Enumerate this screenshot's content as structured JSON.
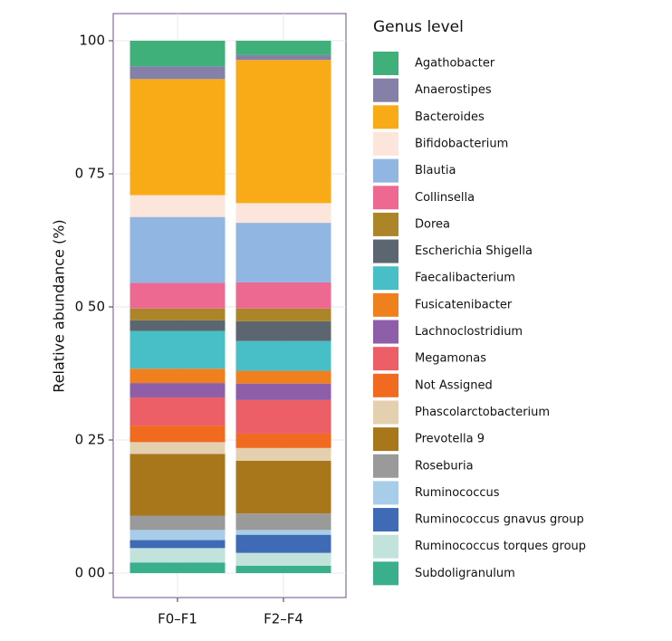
{
  "chart_data": {
    "type": "stacked_bar",
    "ylabel": "Relative abundance (%)",
    "legend_title": "Genus level",
    "categories": [
      "F0–F1",
      "F2–F4"
    ],
    "ylim": [
      0,
      100
    ],
    "yticks": [
      {
        "value": 0,
        "label": "0 00"
      },
      {
        "value": 25,
        "label": "0 25"
      },
      {
        "value": 50,
        "label": "0 50"
      },
      {
        "value": 75,
        "label": "0 75"
      },
      100
    ],
    "grid": true,
    "legend": "right",
    "series": [
      {
        "name": "Agathobacter",
        "color": "#3fb07a",
        "values": [
          4.8,
          2.7
        ]
      },
      {
        "name": "Anaerostipes",
        "color": "#8480a8",
        "values": [
          2.4,
          0.9
        ]
      },
      {
        "name": "Bacteroides",
        "color": "#f8ab17",
        "values": [
          21.8,
          26.9
        ]
      },
      {
        "name": "Bifidobacterium",
        "color": "#fce6dc",
        "values": [
          4.1,
          3.7
        ]
      },
      {
        "name": "Blautia",
        "color": "#91b6e1",
        "values": [
          12.4,
          11.2
        ]
      },
      {
        "name": "Collinsella",
        "color": "#ee6991",
        "values": [
          4.8,
          4.9
        ]
      },
      {
        "name": "Dorea",
        "color": "#ab8528",
        "values": [
          2.2,
          2.4
        ]
      },
      {
        "name": "Escherichia Shigella",
        "color": "#5b6670",
        "values": [
          2.0,
          3.7
        ]
      },
      {
        "name": "Faecalibacterium",
        "color": "#48bec6",
        "values": [
          7.1,
          5.6
        ]
      },
      {
        "name": "Fusicatenibacter",
        "color": "#f07f1d",
        "values": [
          2.7,
          2.4
        ]
      },
      {
        "name": "Lachnoclostridium",
        "color": "#8f5ea9",
        "values": [
          2.7,
          3.1
        ]
      },
      {
        "name": "Megamonas",
        "color": "#ec5f67",
        "values": [
          5.3,
          6.3
        ]
      },
      {
        "name": "Not Assigned",
        "color": "#f06a1f",
        "values": [
          3.1,
          2.7
        ]
      },
      {
        "name": "Phascolarctobacterium",
        "color": "#e4cfae",
        "values": [
          2.2,
          2.4
        ]
      },
      {
        "name": "Prevotella 9",
        "color": "#a8771c",
        "values": [
          11.6,
          9.9
        ]
      },
      {
        "name": "Roseburia",
        "color": "#9a9a9a",
        "values": [
          2.7,
          3.1
        ]
      },
      {
        "name": "Ruminococcus",
        "color": "#a8cde8",
        "values": [
          1.9,
          0.9
        ]
      },
      {
        "name": "Ruminococcus gnavus group",
        "color": "#3f6ab5",
        "values": [
          1.5,
          3.4
        ]
      },
      {
        "name": "Ruminococcus torques group",
        "color": "#c2e2dc",
        "values": [
          2.7,
          2.4
        ]
      },
      {
        "name": "Subdoligranulum",
        "color": "#3aaf8c",
        "values": [
          2.0,
          1.4
        ]
      }
    ]
  }
}
